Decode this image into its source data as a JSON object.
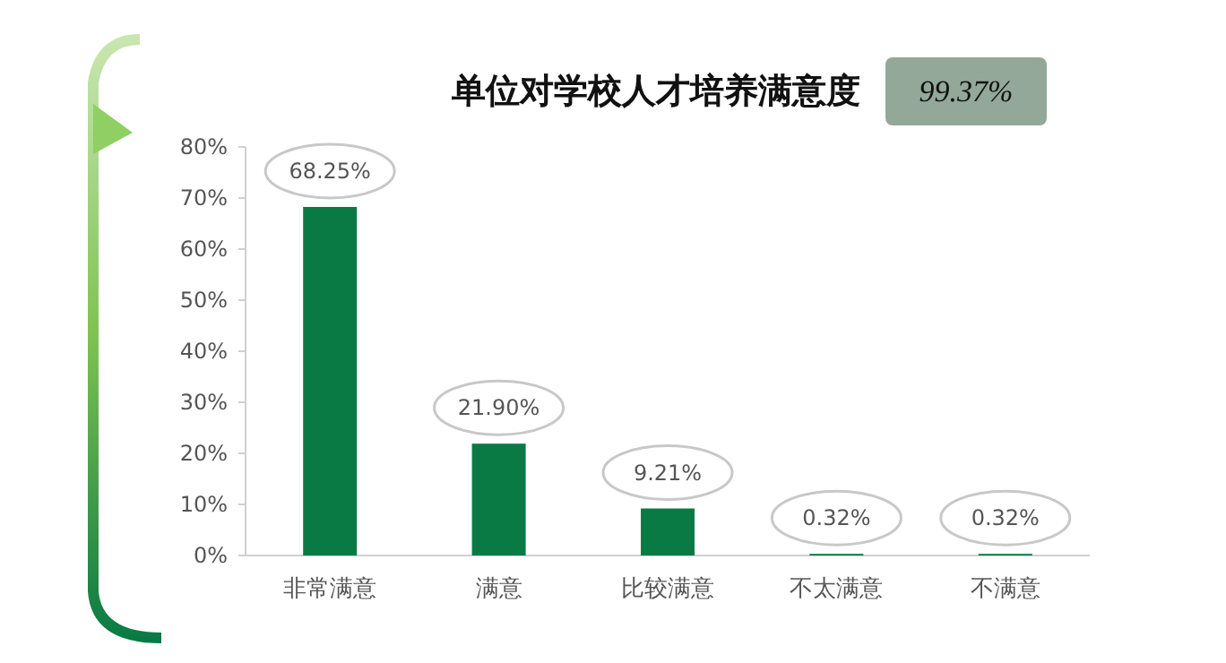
{
  "chart_data": {
    "type": "bar",
    "title": "单位对学校人才培养满意度",
    "annotations": [
      "99.37%"
    ],
    "categories": [
      "非常满意",
      "满意",
      "比较满意",
      "不太满意",
      "不满意"
    ],
    "values": [
      68.25,
      21.9,
      9.21,
      0.32,
      0.32
    ],
    "value_labels": [
      "68.25%",
      "21.90%",
      "9.21%",
      "0.32%",
      "0.32%"
    ],
    "color": "#0a7a45",
    "ylim": [
      0,
      80
    ],
    "yticks": [
      {
        "value": 0,
        "label": "0%"
      },
      {
        "value": 10,
        "label": "10%"
      },
      {
        "value": 20,
        "label": "20%"
      },
      {
        "value": 30,
        "label": "30%"
      },
      {
        "value": 40,
        "label": "40%"
      },
      {
        "value": 50,
        "label": "50%"
      },
      {
        "value": 60,
        "label": "60%"
      },
      {
        "value": 70,
        "label": "70%"
      },
      {
        "value": 80,
        "label": "80%"
      }
    ],
    "grid": false
  }
}
